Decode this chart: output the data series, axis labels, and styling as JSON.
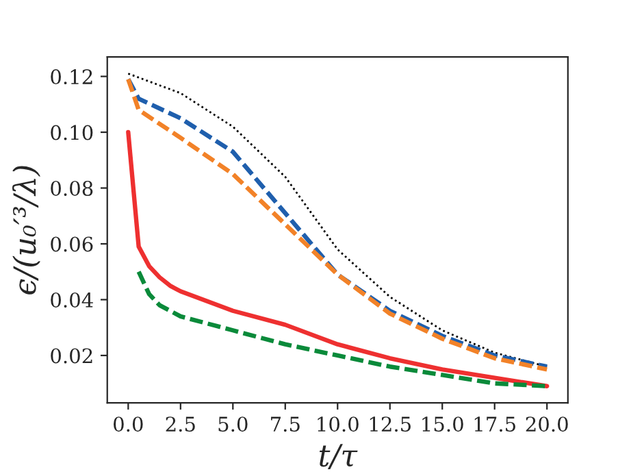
{
  "chart_data": {
    "type": "line",
    "xlabel": "t/τ",
    "ylabel": "ϵ/(u₀′³/λ)",
    "xlim": [
      -1,
      21
    ],
    "ylim": [
      0.003,
      0.127
    ],
    "xticks": [
      {
        "value": 0,
        "label": "0.0"
      },
      {
        "value": 2.5,
        "label": "2.5"
      },
      {
        "value": 5,
        "label": "5.0"
      },
      {
        "value": 7.5,
        "label": "7.5"
      },
      {
        "value": 10,
        "label": "10.0"
      },
      {
        "value": 12.5,
        "label": "12.5"
      },
      {
        "value": 15,
        "label": "15.0"
      },
      {
        "value": 17.5,
        "label": "17.5"
      },
      {
        "value": 20,
        "label": "20.0"
      }
    ],
    "yticks": [
      {
        "value": 0.02,
        "label": "0.02"
      },
      {
        "value": 0.04,
        "label": "0.04"
      },
      {
        "value": 0.06,
        "label": "0.06"
      },
      {
        "value": 0.08,
        "label": "0.08"
      },
      {
        "value": 0.1,
        "label": "0.10"
      },
      {
        "value": 0.12,
        "label": "0.12"
      }
    ],
    "grid": false,
    "legend": false,
    "series": [
      {
        "color": "#000000",
        "line_style": "dotted",
        "x": [
          0,
          2.5,
          5,
          7.5,
          10,
          12.5,
          15,
          17.5,
          20
        ],
        "values": [
          0.121,
          0.114,
          0.102,
          0.084,
          0.058,
          0.041,
          0.029,
          0.021,
          0.016
        ]
      },
      {
        "color": "#1f5fad",
        "line_style": "dashed",
        "x": [
          0,
          0.5,
          2.5,
          5,
          7.5,
          10,
          12.5,
          15,
          17.5,
          20
        ],
        "values": [
          0.119,
          0.112,
          0.105,
          0.093,
          0.071,
          0.049,
          0.036,
          0.027,
          0.02,
          0.016
        ]
      },
      {
        "color": "#f28228",
        "line_style": "dashed",
        "x": [
          0,
          0.5,
          2.5,
          5,
          7.5,
          10,
          12.5,
          15,
          17.5,
          20
        ],
        "values": [
          0.119,
          0.108,
          0.098,
          0.085,
          0.067,
          0.049,
          0.035,
          0.026,
          0.019,
          0.015
        ]
      },
      {
        "color": "#ee3030",
        "line_style": "solid",
        "x": [
          0,
          0.5,
          1,
          1.5,
          2,
          2.5,
          5,
          7.5,
          10,
          12.5,
          15,
          17.5,
          20
        ],
        "values": [
          0.1,
          0.059,
          0.052,
          0.048,
          0.045,
          0.043,
          0.036,
          0.031,
          0.024,
          0.019,
          0.015,
          0.012,
          0.009
        ]
      },
      {
        "color": "#0a8a3a",
        "line_style": "dashed",
        "x": [
          0.5,
          1,
          1.5,
          2.5,
          5,
          7.5,
          10,
          12.5,
          15,
          17.5,
          20
        ],
        "values": [
          0.05,
          0.042,
          0.038,
          0.034,
          0.029,
          0.024,
          0.02,
          0.016,
          0.013,
          0.01,
          0.009
        ]
      }
    ]
  }
}
